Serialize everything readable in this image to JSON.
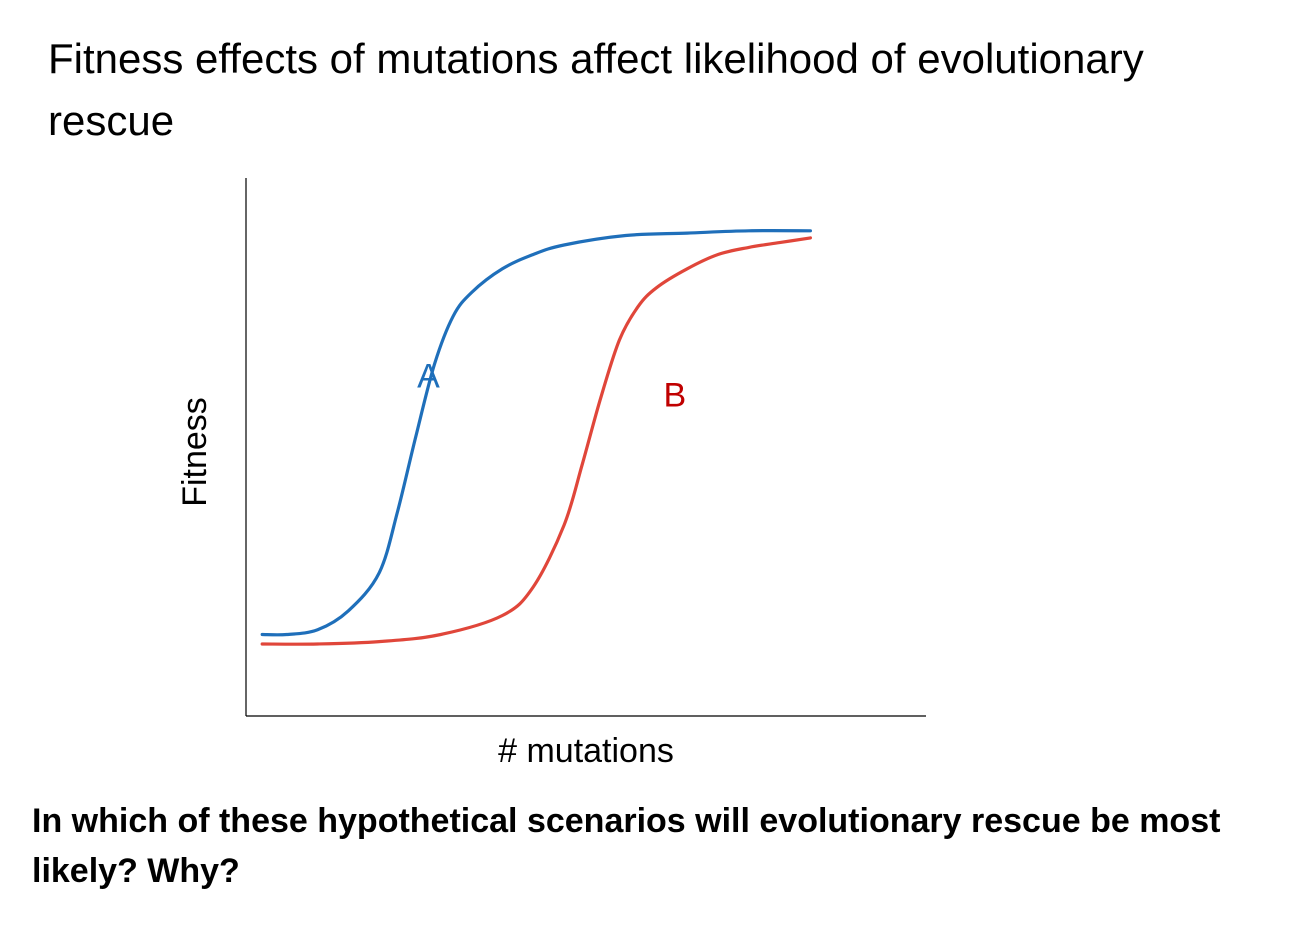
{
  "slide": {
    "title": "Fitness effects of mutations affect likelihood of evolutionary rescue",
    "question": "In which of these hypothetical scenarios will evolutionary rescue be most likely? Why?"
  },
  "chart_data": {
    "type": "line",
    "xlabel": "# mutations",
    "ylabel": "Fitness",
    "xlim": [
      0,
      10
    ],
    "ylim": [
      0,
      1
    ],
    "grid": false,
    "legend": "none",
    "x_ticks_shown": false,
    "y_ticks_shown": false,
    "series": [
      {
        "name": "A",
        "color": "#1f6fba",
        "x": [
          0.1,
          0.5,
          1.0,
          1.5,
          2.0,
          2.3,
          2.6,
          2.9,
          3.2,
          3.5,
          4.0,
          4.5,
          5.0,
          6.0,
          7.0,
          8.0,
          9.0,
          9.0
        ],
        "y": [
          0.1,
          0.1,
          0.11,
          0.15,
          0.23,
          0.36,
          0.52,
          0.67,
          0.77,
          0.82,
          0.87,
          0.9,
          0.92,
          0.94,
          0.945,
          0.95,
          0.95,
          0.95
        ]
      },
      {
        "name": "B",
        "color": "#e0463a",
        "x": [
          0.1,
          1.0,
          2.0,
          3.0,
          4.0,
          4.5,
          5.0,
          5.3,
          5.6,
          5.9,
          6.2,
          6.5,
          7.0,
          7.5,
          8.0,
          8.5,
          9.0
        ],
        "y": [
          0.08,
          0.08,
          0.085,
          0.1,
          0.14,
          0.2,
          0.33,
          0.46,
          0.6,
          0.72,
          0.79,
          0.83,
          0.87,
          0.9,
          0.915,
          0.925,
          0.935
        ]
      }
    ],
    "annotations": [
      {
        "text": "A",
        "x": 2.8,
        "y": 0.62,
        "color": "#1f6fba"
      },
      {
        "text": "B",
        "x": 6.8,
        "y": 0.58,
        "color": "#c00000"
      }
    ]
  }
}
